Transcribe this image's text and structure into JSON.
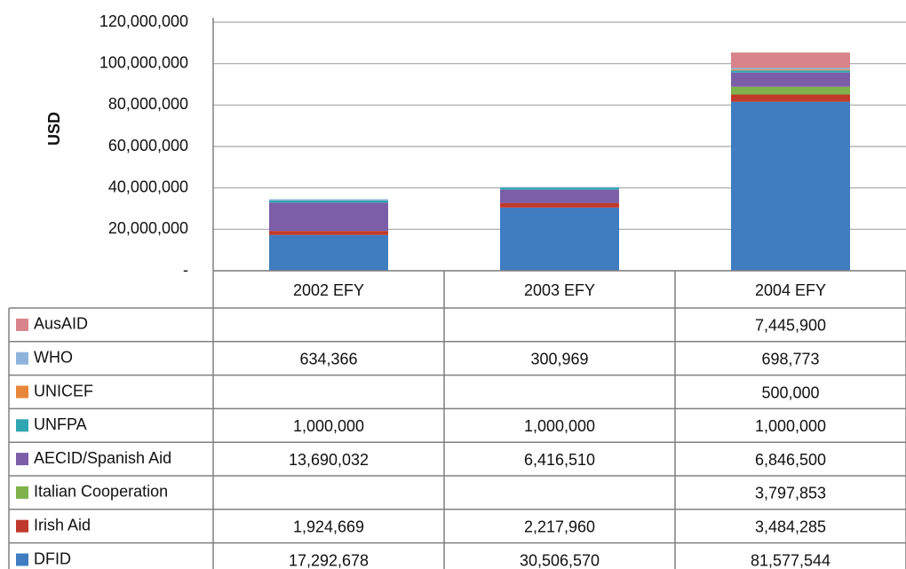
{
  "chart_data": {
    "type": "bar",
    "stacked": true,
    "y_label": "USD",
    "categories": [
      "2002 EFY",
      "2003 EFY",
      "2004 EFY"
    ],
    "ylim": [
      0,
      120000000
    ],
    "yticks": [
      {
        "value": 0,
        "label": "-"
      },
      {
        "value": 20000000,
        "label": "20,000,000"
      },
      {
        "value": 40000000,
        "label": "40,000,000"
      },
      {
        "value": 60000000,
        "label": "60,000,000"
      },
      {
        "value": 80000000,
        "label": "80,000,000"
      },
      {
        "value": 100000000,
        "label": "100,000,000"
      },
      {
        "value": 120000000,
        "label": "120,000,000"
      }
    ],
    "grid": true,
    "series": [
      {
        "name": "DFID",
        "color": "#3f7cc0",
        "values": [
          17292678,
          30506570,
          81577544
        ],
        "value_labels": [
          "17,292,678",
          "30,506,570",
          "81,577,544"
        ]
      },
      {
        "name": "Irish Aid",
        "color": "#c0392b",
        "values": [
          1924669,
          2217960,
          3484285
        ],
        "value_labels": [
          "1,924,669",
          "2,217,960",
          "3,484,285"
        ]
      },
      {
        "name": "Italian Cooperation",
        "color": "#7fb24a",
        "values": [
          null,
          null,
          3797853
        ],
        "value_labels": [
          null,
          null,
          "3,797,853"
        ]
      },
      {
        "name": "AECID/Spanish Aid",
        "color": "#7b5ea7",
        "values": [
          13690032,
          6416510,
          6846500
        ],
        "value_labels": [
          "13,690,032",
          "6,416,510",
          "6,846,500"
        ]
      },
      {
        "name": "UNFPA",
        "color": "#31a6b3",
        "values": [
          1000000,
          1000000,
          1000000
        ],
        "value_labels": [
          "1,000,000",
          "1,000,000",
          "1,000,000"
        ]
      },
      {
        "name": "UNICEF",
        "color": "#e8873a",
        "values": [
          null,
          null,
          500000
        ],
        "value_labels": [
          null,
          null,
          "500,000"
        ]
      },
      {
        "name": "WHO",
        "color": "#8fb4db",
        "values": [
          634366,
          300969,
          698773
        ],
        "value_labels": [
          "634,366",
          "300,969",
          "698,773"
        ]
      },
      {
        "name": "AusAID",
        "color": "#d9848a",
        "values": [
          null,
          null,
          7445900
        ],
        "value_labels": [
          null,
          null,
          "7,445,900"
        ]
      }
    ]
  }
}
